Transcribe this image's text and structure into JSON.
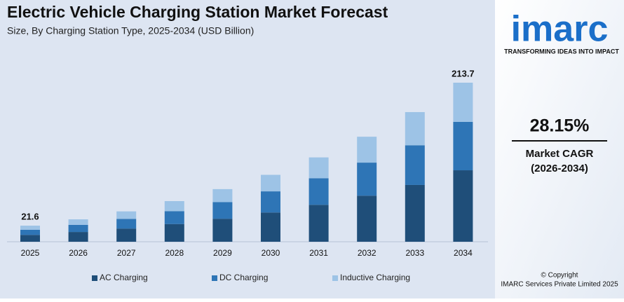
{
  "chart_data": {
    "type": "stacked-bar",
    "title": "Electric Vehicle Charging Station Market Forecast",
    "subtitle": "Size, By Charging Station Type, 2025-2034 (USD Billion)",
    "categories": [
      "2025",
      "2026",
      "2027",
      "2028",
      "2029",
      "2030",
      "2031",
      "2032",
      "2033",
      "2034"
    ],
    "series": [
      {
        "name": "AC Charging",
        "color": "#1f4e79",
        "values": [
          9.2,
          13.1,
          17.7,
          23.8,
          30.9,
          39.3,
          49.6,
          61.9,
          76.3,
          96.0
        ]
      },
      {
        "name": "DC Charging",
        "color": "#2e75b6",
        "values": [
          6.9,
          9.6,
          13.0,
          17.3,
          22.4,
          28.4,
          35.7,
          44.4,
          53.3,
          65.0
        ]
      },
      {
        "name": "Inductive Charging",
        "color": "#9dc3e6",
        "values": [
          5.5,
          7.4,
          10.1,
          13.5,
          17.4,
          22.2,
          28.0,
          34.8,
          44.6,
          52.7
        ]
      }
    ],
    "totals": [
      21.6,
      null,
      null,
      null,
      null,
      null,
      null,
      null,
      null,
      213.7
    ]
  },
  "sidebar": {
    "logo": "imarc",
    "tagline": "TRANSFORMING IDEAS INTO IMPACT",
    "cagr": "28.15%",
    "cagr_label": "Market CAGR",
    "cagr_period": "(2026-2034)",
    "copyright": "© Copyright",
    "company": "IMARC Services Private Limited 2025"
  }
}
